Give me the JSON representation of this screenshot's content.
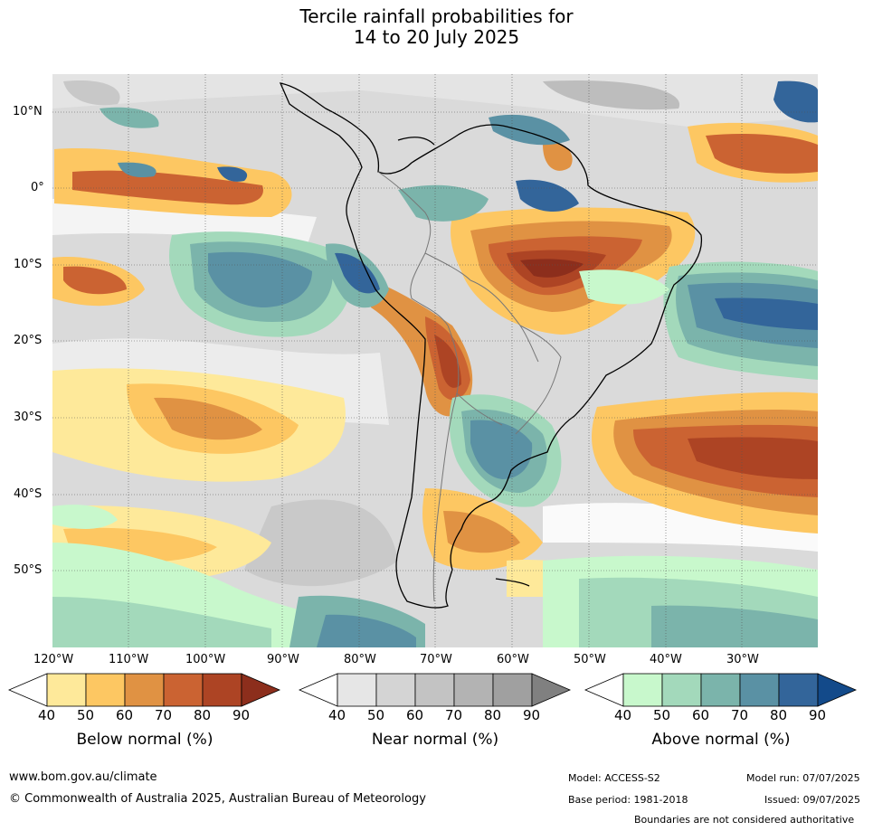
{
  "title_line1": "Tercile rainfall probabilities for",
  "title_line2": "14 to 20 July 2025",
  "lat_labels": [
    "10°N",
    "0°",
    "10°S",
    "20°S",
    "30°S",
    "40°S",
    "50°S"
  ],
  "lon_labels": [
    "120°W",
    "110°W",
    "100°W",
    "90°W",
    "80°W",
    "70°W",
    "60°W",
    "50°W",
    "40°W",
    "30°W"
  ],
  "colorbars": [
    {
      "title": "Below normal (%)",
      "ticks": [
        "40",
        "50",
        "60",
        "70",
        "80",
        "90"
      ],
      "colors": [
        "#ffffff",
        "#fee99a",
        "#fdc762",
        "#e09243",
        "#cb6332",
        "#ad4424",
        "#8c2e1c"
      ]
    },
    {
      "title": "Near normal (%)",
      "ticks": [
        "40",
        "50",
        "60",
        "70",
        "80",
        "90"
      ],
      "colors": [
        "#ffffff",
        "#e6e6e6",
        "#d4d4d4",
        "#c3c3c3",
        "#b3b3b3",
        "#a0a0a0",
        "#808080"
      ]
    },
    {
      "title": "Above normal (%)",
      "ticks": [
        "40",
        "50",
        "60",
        "70",
        "80",
        "90"
      ],
      "colors": [
        "#ffffff",
        "#c8f8cc",
        "#a3d9bb",
        "#7bb4ab",
        "#5a91a4",
        "#33659a",
        "#134a8a"
      ]
    }
  ],
  "footer": {
    "url": "www.bom.gov.au/climate",
    "copyright": "© Commonwealth of Australia 2025, Australian Bureau of Meteorology",
    "model": "Model: ACCESS-S2",
    "model_run": "Model run: 07/07/2025",
    "base_period": "Base period: 1981-2018",
    "issued": "Issued: 09/07/2025",
    "disclaimer": "Boundaries are not considered authoritative"
  }
}
